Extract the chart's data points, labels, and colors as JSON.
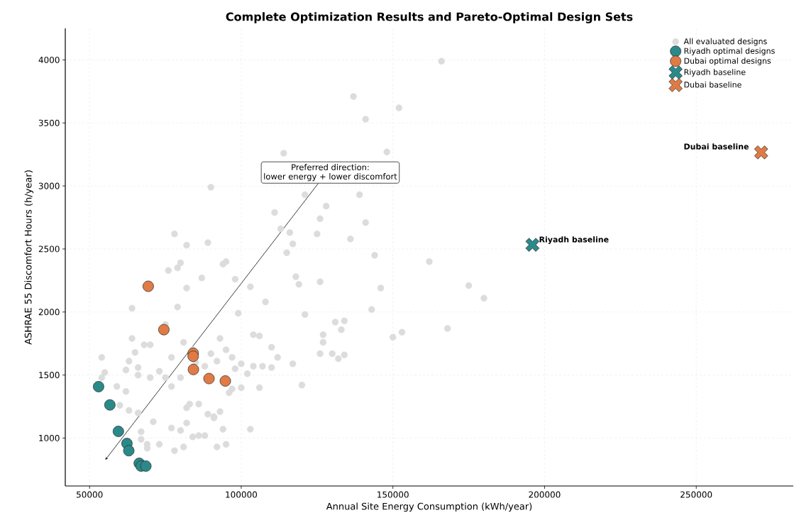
{
  "chart_data": {
    "type": "scatter",
    "title": "Complete Optimization Results and Pareto-Optimal Design Sets",
    "xlabel": "Annual Site Energy Consumption (kWh/year)",
    "ylabel": "ASHRAE 55 Discomfort Hours (h/year)",
    "xlim": [
      42000,
      282000
    ],
    "ylim": [
      620,
      4250
    ],
    "xticks": [
      50000,
      100000,
      150000,
      200000,
      250000
    ],
    "yticks": [
      1000,
      1500,
      2000,
      2500,
      3000,
      3500,
      4000
    ],
    "grid": true,
    "legend": "top right",
    "series": [
      {
        "name": "All evaluated designs",
        "color": "#dcdcdc",
        "marker": "circle",
        "x": [
          166000,
          137000,
          141000,
          152000,
          114000,
          148000,
          90000,
          121000,
          128000,
          139000,
          111000,
          141000,
          113000,
          126000,
          125000,
          136000,
          116000,
          115000,
          117000,
          144000,
          162000,
          78000,
          82000,
          89000,
          94000,
          95000,
          80000,
          76000,
          79000,
          87000,
          98000,
          103000,
          118000,
          119000,
          126000,
          146000,
          175000,
          64000,
          82000,
          75000,
          79000,
          99000,
          108000,
          121000,
          131000,
          134000,
          143000,
          180000,
          168000,
          150000,
          153000,
          127000,
          133000,
          127000,
          130000,
          134000,
          132000,
          126000,
          117000,
          112000,
          110000,
          104000,
          106000,
          110000,
          107000,
          120000,
          102000,
          104000,
          100000,
          98000,
          97000,
          95000,
          93000,
          92000,
          90000,
          88000,
          85000,
          84000,
          81000,
          80000,
          77000,
          70000,
          66000,
          62000,
          63000,
          54000,
          55000,
          54000,
          59000,
          62000,
          60000,
          65000,
          68000,
          70000,
          64000,
          66000,
          73000,
          75000,
          77000,
          82000,
          83000,
          86000,
          89000,
          91000,
          93000,
          96000,
          94000,
          97000,
          103000,
          106000,
          82000,
          71000,
          63000,
          67000,
          69000,
          73000,
          78000,
          81000,
          84000,
          86000,
          80000,
          77000,
          66000,
          67000,
          69000,
          92000,
          95000,
          88000,
          91000,
          100000
        ],
        "values": [
          3990,
          3710,
          3530,
          3620,
          3260,
          3270,
          2990,
          2930,
          2840,
          2930,
          2790,
          2710,
          2660,
          2740,
          2620,
          2580,
          2630,
          2470,
          2540,
          2450,
          2400,
          2620,
          2530,
          2550,
          2380,
          2400,
          2390,
          2330,
          2350,
          2270,
          2260,
          2200,
          2280,
          2220,
          2240,
          2190,
          2210,
          2030,
          2190,
          1900,
          2040,
          1990,
          2080,
          1980,
          1920,
          1930,
          2020,
          2110,
          1870,
          1800,
          1840,
          1820,
          1860,
          1760,
          1670,
          1660,
          1630,
          1670,
          1590,
          1640,
          1720,
          1820,
          1810,
          1560,
          1570,
          1420,
          1510,
          1570,
          1590,
          1550,
          1640,
          1700,
          1790,
          1610,
          1670,
          1570,
          1600,
          1700,
          1760,
          1480,
          1640,
          1480,
          1500,
          1540,
          1610,
          1640,
          1520,
          1480,
          1410,
          1370,
          1260,
          1680,
          1740,
          1740,
          1790,
          1560,
          1530,
          1480,
          1410,
          1240,
          1270,
          1270,
          1190,
          1160,
          1210,
          1360,
          1070,
          1390,
          1070,
          1400,
          1120,
          1130,
          1220,
          1050,
          950,
          950,
          900,
          930,
          1010,
          1020,
          1060,
          1080,
          1200,
          990,
          920,
          930,
          950,
          1020,
          1170,
          1400
        ]
      },
      {
        "name": "Riyadh optimal designs",
        "color": "#2a8a8a",
        "marker": "circle",
        "x": [
          52970,
          56700,
          59500,
          62330,
          62940,
          66380,
          67000,
          68560
        ],
        "values": [
          1408,
          1263,
          1053,
          957,
          900,
          800,
          778,
          778
        ]
      },
      {
        "name": "Dubai optimal designs",
        "color": "#e07b45",
        "marker": "circle",
        "x": [
          69350,
          74500,
          84160,
          84160,
          84240,
          89380,
          94760
        ],
        "values": [
          2204,
          1860,
          1673,
          1649,
          1544,
          1472,
          1453
        ]
      },
      {
        "name": "Riyadh baseline",
        "color": "#2a8a8a",
        "marker": "cross",
        "x": [
          196000
        ],
        "values": [
          2533
        ]
      },
      {
        "name": "Dubai baseline",
        "color": "#e07b45",
        "marker": "cross",
        "x": [
          271400
        ],
        "values": [
          3266
        ]
      }
    ],
    "annotations": [
      "Preferred direction:",
      "lower energy + lower discomfort",
      {
        "text": "Riyadh baseline",
        "x": 196000,
        "y": 2533
      },
      {
        "text": "Dubai baseline",
        "x": 271400,
        "y": 3266
      }
    ]
  }
}
